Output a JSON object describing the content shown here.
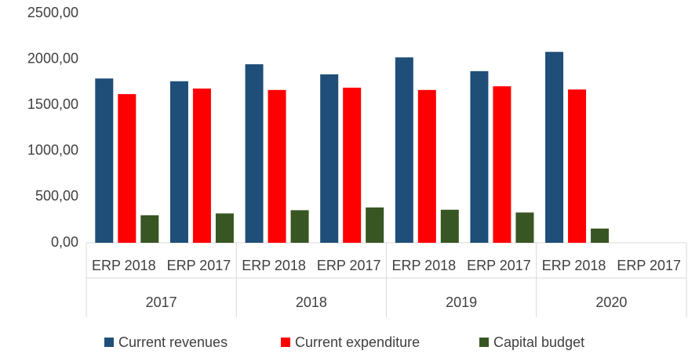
{
  "chart_data": {
    "type": "bar",
    "categories": [
      "ERP 2018",
      "ERP 2017",
      "ERP 2018",
      "ERP 2017",
      "ERP 2018",
      "ERP 2017",
      "ERP 2018",
      "ERP 2017"
    ],
    "groups": [
      "2017",
      "2018",
      "2019",
      "2020"
    ],
    "series": [
      {
        "name": "Current revenues",
        "color": "#1f4e79",
        "values": [
          1790,
          1760,
          1945,
          1835,
          2020,
          1870,
          2080,
          null
        ]
      },
      {
        "name": "Current expenditure",
        "color": "#ff0000",
        "values": [
          1620,
          1680,
          1665,
          1690,
          1665,
          1705,
          1670,
          null
        ]
      },
      {
        "name": "Capital budget",
        "color": "#375623",
        "values": [
          300,
          320,
          355,
          385,
          360,
          330,
          155,
          null
        ]
      }
    ],
    "ylim": [
      0,
      2500
    ],
    "yticks": [
      {
        "value": 0,
        "label": "0,00"
      },
      {
        "value": 500,
        "label": "500,00"
      },
      {
        "value": 1000,
        "label": "1000,00"
      },
      {
        "value": 1500,
        "label": "1500,00"
      },
      {
        "value": 2000,
        "label": "2000,00"
      },
      {
        "value": 2500,
        "label": "2500,00"
      }
    ],
    "grid": false,
    "legend": "bottom"
  }
}
